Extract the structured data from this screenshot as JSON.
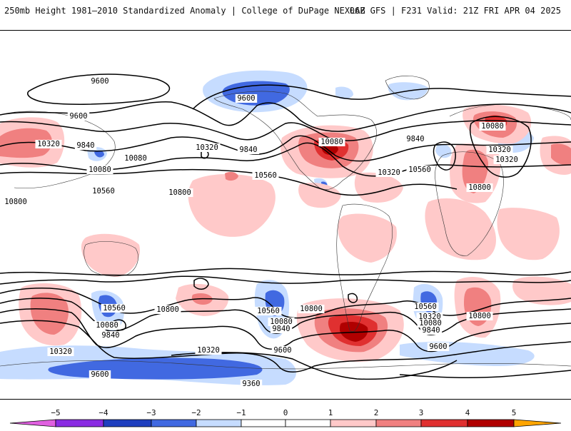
{
  "header": {
    "title": "250mb Height 1981–2010 Standardized Anomaly | College of DuPage NEXLAB",
    "model_info": "06Z GFS | F231 Valid: 21Z FRI APR 04 2025"
  },
  "colors": {
    "neg5": "#e060e0",
    "neg4": "#8a2be2",
    "neg3": "#1f3fbf",
    "neg2": "#4169e1",
    "neg1": "#c6dcff",
    "zero": "#ffffff",
    "pos1": "#ffc9c9",
    "pos2": "#f08080",
    "pos3": "#e03030",
    "pos4": "#b00000",
    "pos5": "#ffa500"
  },
  "colorbar": {
    "ticks": [
      "−5",
      "−4",
      "−3",
      "−2",
      "−1",
      "0",
      "1",
      "2",
      "3",
      "4",
      "5"
    ]
  },
  "contour_labels": [
    "9600",
    "9600",
    "9600",
    "9840",
    "9840",
    "10080",
    "10080",
    "10080",
    "10080",
    "10320",
    "10320",
    "10320",
    "10320",
    "10560",
    "10560",
    "10800",
    "10800",
    "9840",
    "10560",
    "10800",
    "10320",
    "10080",
    "10800",
    "10320",
    "10080",
    "9840",
    "10320",
    "10560",
    "10800",
    "10560",
    "10080",
    "9840",
    "9600",
    "10560",
    "10320",
    "10080",
    "9840",
    "9600",
    "10800",
    "9600",
    "9360",
    "9360"
  ]
}
